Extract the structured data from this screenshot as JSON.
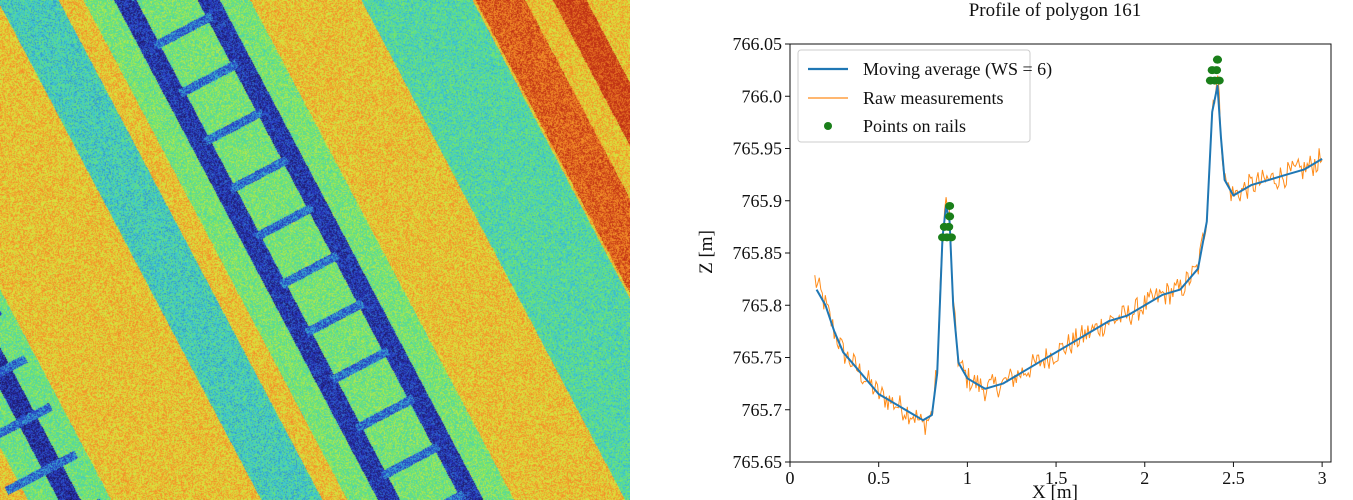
{
  "image_panel": {
    "description": "",
    "colors": {
      "background": "#f08a2a",
      "rail": "#1f2d8a",
      "ballast": "#5fe07a"
    }
  },
  "chart_data": {
    "type": "line",
    "title": "Profile of polygon 161",
    "xlabel": "X [m]",
    "ylabel": "Z [m]",
    "xlim": [
      0,
      3.05
    ],
    "ylim": [
      765.65,
      766.05
    ],
    "x_ticks": [
      0,
      0.5,
      1,
      1.5,
      2,
      2.5,
      3
    ],
    "x_tick_labels": [
      "0",
      "0.5",
      "1",
      "1.5",
      "2",
      "2.5",
      "3"
    ],
    "y_ticks": [
      765.65,
      765.7,
      765.75,
      765.8,
      765.85,
      765.9,
      765.95,
      766.0,
      766.05
    ],
    "y_tick_labels": [
      "765.65",
      "765.7",
      "765.75",
      "765.8",
      "765.85",
      "765.9",
      "765.95",
      "766.0",
      "766.05"
    ],
    "grid": false,
    "legend_position": "top-left",
    "legend": [
      "Moving average (WS = 6)",
      "Raw measurements",
      "Points on rails"
    ],
    "series": [
      {
        "name": "Moving average (WS = 6)",
        "color": "#1f77b4",
        "kind": "line",
        "x": [
          0.15,
          0.2,
          0.25,
          0.3,
          0.35,
          0.4,
          0.45,
          0.5,
          0.55,
          0.6,
          0.65,
          0.7,
          0.75,
          0.8,
          0.83,
          0.86,
          0.88,
          0.9,
          0.92,
          0.95,
          1.0,
          1.05,
          1.1,
          1.2,
          1.3,
          1.4,
          1.5,
          1.6,
          1.7,
          1.8,
          1.9,
          2.0,
          2.1,
          2.2,
          2.3,
          2.35,
          2.38,
          2.41,
          2.43,
          2.45,
          2.5,
          2.55,
          2.6,
          2.7,
          2.8,
          2.9,
          3.0
        ],
        "y": [
          765.815,
          765.8,
          765.775,
          765.755,
          765.745,
          765.735,
          765.725,
          765.715,
          765.71,
          765.705,
          765.7,
          765.695,
          765.69,
          765.695,
          765.735,
          765.865,
          765.895,
          765.88,
          765.8,
          765.745,
          765.73,
          765.725,
          765.72,
          765.725,
          765.735,
          765.745,
          765.755,
          765.765,
          765.775,
          765.785,
          765.79,
          765.8,
          765.81,
          765.815,
          765.835,
          765.88,
          765.985,
          766.01,
          765.96,
          765.92,
          765.905,
          765.91,
          765.915,
          765.92,
          765.925,
          765.93,
          765.94
        ]
      },
      {
        "name": "Raw measurements",
        "color": "#ff8c1a",
        "kind": "line-noisy",
        "noise": 0.012,
        "x": [
          0.14,
          0.2,
          0.25,
          0.3,
          0.35,
          0.4,
          0.45,
          0.5,
          0.55,
          0.6,
          0.65,
          0.7,
          0.75,
          0.8,
          0.83,
          0.86,
          0.88,
          0.9,
          0.92,
          0.95,
          1.0,
          1.05,
          1.1,
          1.2,
          1.3,
          1.4,
          1.5,
          1.6,
          1.7,
          1.8,
          1.9,
          2.0,
          2.1,
          2.2,
          2.3,
          2.35,
          2.38,
          2.41,
          2.43,
          2.45,
          2.5,
          2.55,
          2.6,
          2.7,
          2.8,
          2.9,
          3.0
        ],
        "y": [
          765.825,
          765.8,
          765.775,
          765.755,
          765.745,
          765.735,
          765.725,
          765.715,
          765.71,
          765.705,
          765.7,
          765.695,
          765.685,
          765.695,
          765.74,
          765.87,
          765.9,
          765.885,
          765.8,
          765.745,
          765.73,
          765.725,
          765.72,
          765.725,
          765.735,
          765.745,
          765.755,
          765.765,
          765.775,
          765.785,
          765.79,
          765.8,
          765.81,
          765.815,
          765.835,
          765.885,
          765.99,
          766.02,
          765.965,
          765.92,
          765.905,
          765.91,
          765.915,
          765.92,
          765.925,
          765.93,
          765.94
        ]
      },
      {
        "name": "Points on rails",
        "color": "#1a7f1a",
        "kind": "scatter",
        "x": [
          0.86,
          0.885,
          0.91,
          0.87,
          0.895,
          0.9,
          0.9,
          2.37,
          2.395,
          2.42,
          2.38,
          2.405,
          2.41,
          2.41
        ],
        "y": [
          765.865,
          765.865,
          765.865,
          765.875,
          765.875,
          765.885,
          765.895,
          766.015,
          766.015,
          766.015,
          766.025,
          766.025,
          766.035,
          766.035
        ]
      }
    ]
  }
}
